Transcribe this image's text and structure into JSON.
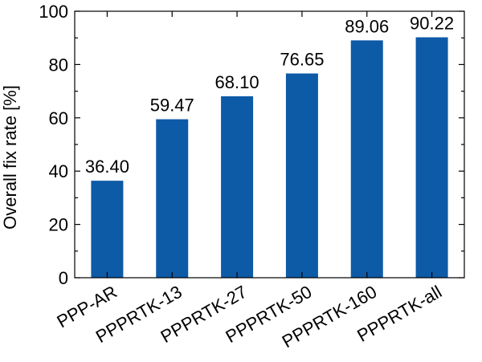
{
  "chart_data": {
    "type": "bar",
    "categories": [
      "PPP-AR",
      "PPPRTK-13",
      "PPPRTK-27",
      "PPPRTK-50",
      "PPPRTK-160",
      "PPPRTK-all"
    ],
    "values": [
      36.4,
      59.47,
      68.1,
      76.65,
      89.06,
      90.22
    ],
    "value_labels": [
      "36.40",
      "59.47",
      "68.10",
      "76.65",
      "89.06",
      "90.22"
    ],
    "title": "",
    "xlabel": "",
    "ylabel": "Overall fix rate [%]",
    "ylim": [
      0,
      100
    ],
    "yticks": [
      0,
      20,
      40,
      60,
      80,
      100
    ],
    "grid": false,
    "legend": "none",
    "bar_color": "#0d5aa7"
  }
}
